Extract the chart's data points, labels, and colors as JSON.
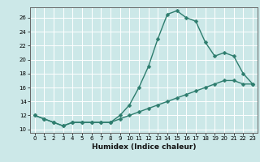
{
  "title": "",
  "xlabel": "Humidex (Indice chaleur)",
  "bg_color": "#cce8e8",
  "grid_color": "#ffffff",
  "line_color": "#2e7d6e",
  "xlim": [
    -0.5,
    23.5
  ],
  "ylim": [
    9.5,
    27.5
  ],
  "xticks": [
    0,
    1,
    2,
    3,
    4,
    5,
    6,
    7,
    8,
    9,
    10,
    11,
    12,
    13,
    14,
    15,
    16,
    17,
    18,
    19,
    20,
    21,
    22,
    23
  ],
  "yticks": [
    10,
    12,
    14,
    16,
    18,
    20,
    22,
    24,
    26
  ],
  "series1_x": [
    0,
    1,
    2,
    3,
    4,
    5,
    6,
    7,
    8,
    9,
    10,
    11,
    12,
    13,
    14,
    15,
    16,
    17,
    18,
    19,
    20,
    21,
    22,
    23
  ],
  "series1_y": [
    12.0,
    11.5,
    11.0,
    10.5,
    11.0,
    11.0,
    11.0,
    11.0,
    11.0,
    12.0,
    13.5,
    16.0,
    19.0,
    23.0,
    26.5,
    27.0,
    26.0,
    25.5,
    22.5,
    20.5,
    21.0,
    20.5,
    18.0,
    16.5
  ],
  "series2_x": [
    0,
    1,
    2,
    3,
    4,
    5,
    6,
    7,
    8,
    9,
    10,
    11,
    12,
    13,
    14,
    15,
    16,
    17,
    18,
    19,
    20,
    21,
    22,
    23
  ],
  "series2_y": [
    12.0,
    11.5,
    11.0,
    10.5,
    11.0,
    11.0,
    11.0,
    11.0,
    11.0,
    11.5,
    12.0,
    12.5,
    13.0,
    13.5,
    14.0,
    14.5,
    15.0,
    15.5,
    16.0,
    16.5,
    17.0,
    17.0,
    16.5,
    16.5
  ],
  "markersize": 2.5,
  "linewidth": 1.0,
  "tick_fontsize": 5.0,
  "xlabel_fontsize": 6.5
}
